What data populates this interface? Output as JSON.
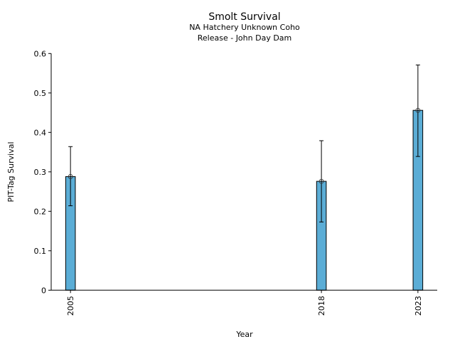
{
  "chart_data": {
    "type": "bar",
    "title": "Smolt Survival",
    "subtitle_lines": [
      "NA Hatchery Unknown Coho",
      "Release - John Day Dam"
    ],
    "xlabel": "Year",
    "ylabel": "PIT-Tag Survival",
    "categories": [
      "2005",
      "2018",
      "2023"
    ],
    "x": [
      2005,
      2018,
      2023
    ],
    "values": [
      0.288,
      0.276,
      0.456
    ],
    "error_lower": [
      0.214,
      0.173,
      0.339
    ],
    "error_upper": [
      0.364,
      0.379,
      0.571
    ],
    "xlim": [
      2004,
      2024
    ],
    "ylim": [
      0,
      0.6
    ],
    "yticks": [
      0,
      0.1,
      0.2,
      0.3,
      0.4,
      0.5,
      0.6
    ],
    "ytick_labels": [
      "0",
      "0.1",
      "0.2",
      "0.3",
      "0.4",
      "0.5",
      "0.6"
    ],
    "bar_width_years": 0.5,
    "grid": false,
    "bar_color": "#5badd6"
  }
}
